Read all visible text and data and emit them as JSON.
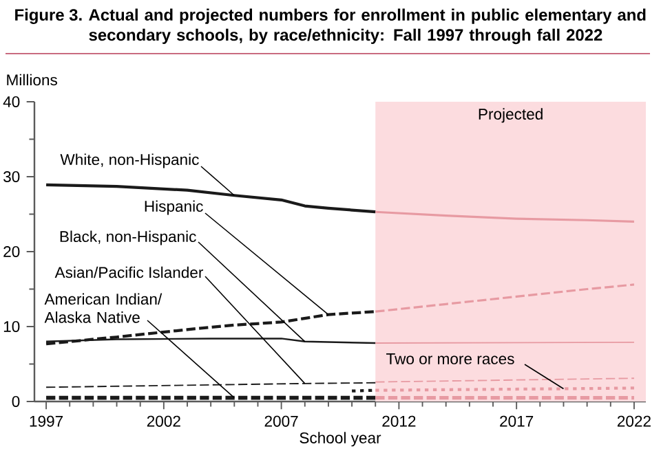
{
  "chart_data": {
    "type": "line",
    "title": "Figure 3.",
    "subtitle": "Actual and projected numbers for enrollment in public elementary and secondary schools, by race/ethnicity: Fall 1997 through fall 2022",
    "ylabel": "Millions",
    "xlabel": "School year",
    "xlim": [
      1996.5,
      2022.5
    ],
    "xticks": [
      1997,
      2002,
      2007,
      2012,
      2017,
      2022
    ],
    "ylim": [
      0,
      40
    ],
    "yticks": [
      0,
      10,
      20,
      30,
      40
    ],
    "bands": [
      {
        "axis": "x",
        "from": 2011,
        "to": 2022.5,
        "label": "Projected",
        "color": "#fcdcdf"
      }
    ],
    "series": [
      {
        "name": "White, non-Hispanic",
        "color": "#1a1a1a",
        "line_style": "solid",
        "x": [
          1997,
          2000,
          2003,
          2005,
          2007,
          2008,
          2009,
          2011
        ],
        "values": [
          28.9,
          28.7,
          28.2,
          27.5,
          26.9,
          26.1,
          25.8,
          25.3
        ]
      },
      {
        "name": "Hispanic",
        "color": "#1a1a1a",
        "line_style": "dashed",
        "x": [
          1997,
          2000,
          2003,
          2005,
          2007,
          2009,
          2011
        ],
        "values": [
          7.7,
          8.6,
          9.6,
          10.2,
          10.6,
          11.6,
          12.0
        ]
      },
      {
        "name": "Black, non-Hispanic",
        "color": "#1a1a1a",
        "line_style": "solid",
        "x": [
          1997,
          2000,
          2004,
          2007,
          2008,
          2011
        ],
        "values": [
          8.0,
          8.3,
          8.4,
          8.4,
          8.0,
          7.8
        ]
      },
      {
        "name": "Asian/Pacific Islander",
        "color": "#1a1a1a",
        "line_style": "dashed",
        "x": [
          1997,
          2008,
          2011
        ],
        "values": [
          1.9,
          2.4,
          2.5
        ]
      },
      {
        "name": "American Indian/ Alaska Native",
        "color": "#1a1a1a",
        "line_style": "dashed",
        "x": [
          1997,
          2005,
          2011
        ],
        "values": [
          0.5,
          0.5,
          0.5
        ]
      },
      {
        "color": "#1a1a1a",
        "line_style": "dotted",
        "x": [
          2010,
          2011
        ],
        "values": [
          1.4,
          1.5
        ]
      },
      {
        "color": "#e79aa2",
        "line_style": "solid",
        "x": [
          2011,
          2014,
          2017,
          2020,
          2022
        ],
        "values": [
          25.3,
          24.8,
          24.4,
          24.2,
          24.0
        ]
      },
      {
        "color": "#e79aa2",
        "line_style": "dashed",
        "x": [
          2011,
          2014,
          2017,
          2020,
          2022
        ],
        "values": [
          12.0,
          13.0,
          14.0,
          15.0,
          15.6
        ]
      },
      {
        "color": "#e79aa2",
        "line_style": "solid",
        "x": [
          2011,
          2022
        ],
        "values": [
          7.8,
          7.9
        ]
      },
      {
        "color": "#e79aa2",
        "line_style": "dashed",
        "x": [
          2011,
          2022
        ],
        "values": [
          2.6,
          3.1
        ]
      },
      {
        "color": "#e79aa2",
        "line_style": "dashed",
        "x": [
          2011,
          2022
        ],
        "values": [
          0.5,
          0.5
        ]
      },
      {
        "name": "Two or more races",
        "color": "#e79aa2",
        "line_style": "dotted",
        "x": [
          2011,
          2019,
          2022
        ],
        "values": [
          1.5,
          1.7,
          1.8
        ]
      }
    ]
  }
}
